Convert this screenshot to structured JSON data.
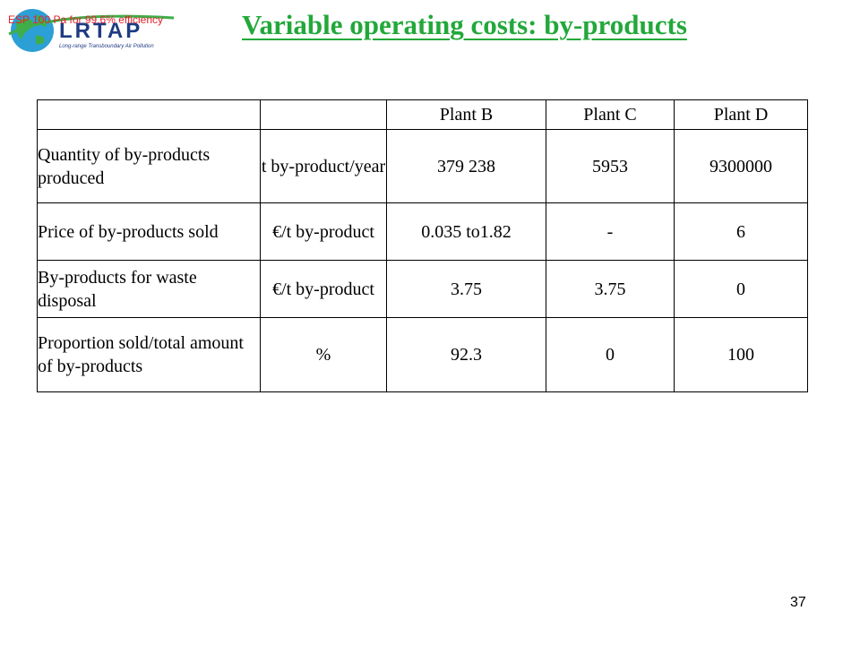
{
  "header": {
    "logo_text": "LRTAP",
    "logo_tagline": "Long-range Transboundary Air Pollution",
    "note": "ESP 100 Pa for 99.6% efficiency"
  },
  "title": "Variable operating costs: by-products",
  "table": {
    "columns": [
      "",
      "",
      "Plant B",
      "Plant C",
      "Plant D"
    ],
    "rows": [
      {
        "label": "Quantity of by-products  produced",
        "unit": "t by-product/year",
        "plant_b": "379 238",
        "plant_c": "5953",
        "plant_d": "9300000"
      },
      {
        "label": "Price of by-products sold",
        "unit": "€/t by-product",
        "plant_b": "0.035 to1.82",
        "plant_c": "-",
        "plant_d": "6"
      },
      {
        "label": "By-products for waste disposal",
        "unit": "€/t by-product",
        "plant_b": "3.75",
        "plant_c": "3.75",
        "plant_d": "0"
      },
      {
        "label": "Proportion sold/total amount of by-products",
        "unit": "%",
        "plant_b": "92.3",
        "plant_c": "0",
        "plant_d": "100"
      }
    ]
  },
  "page_number": "37",
  "colors": {
    "title": "#22a83a",
    "note": "#e8202a",
    "logo_text": "#1f3b82",
    "logo_globe": "#2b9fd6",
    "logo_swoosh": "#3fae49"
  },
  "icons": {
    "logo": "lrtap-globe-logo"
  }
}
